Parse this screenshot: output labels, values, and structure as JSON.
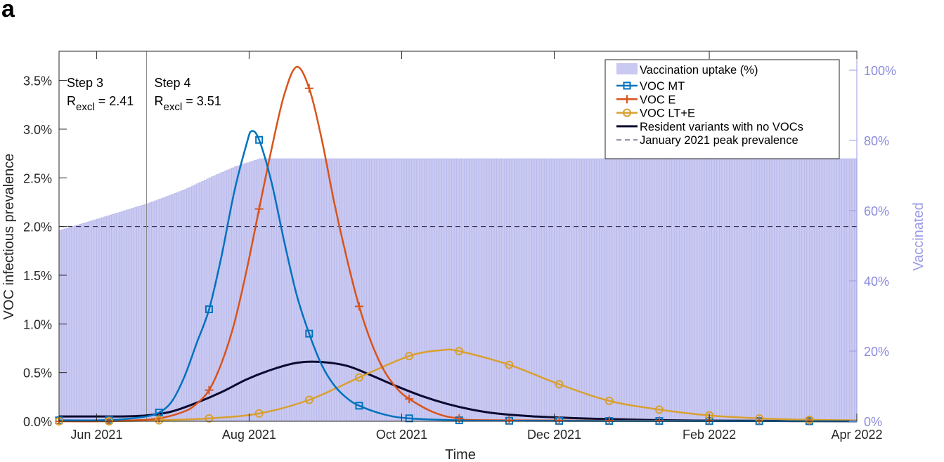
{
  "panel_label": "a",
  "chart_data": {
    "type": "line",
    "xlabel": "Time",
    "ylabel": "VOC infectious prevalence",
    "ylabel_right": "Vaccinated",
    "x_unit": "days since 1 Jun 2021",
    "xlim": [
      -15,
      304
    ],
    "ylim": [
      0,
      3.8
    ],
    "ylim_right": [
      0,
      105.4
    ],
    "grid": false,
    "legend_placement": "top-right",
    "x_ticks": [
      {
        "day": 0,
        "label": "Jun 2021"
      },
      {
        "day": 61,
        "label": "Aug 2021"
      },
      {
        "day": 122,
        "label": "Oct 2021"
      },
      {
        "day": 183,
        "label": "Dec 2021"
      },
      {
        "day": 245,
        "label": "Feb 2022"
      },
      {
        "day": 304,
        "label": "Apr 2022"
      }
    ],
    "y_ticks": [
      {
        "v": 0,
        "label": "0.0%"
      },
      {
        "v": 0.5,
        "label": "0.5%"
      },
      {
        "v": 1.0,
        "label": "1.0%"
      },
      {
        "v": 1.5,
        "label": "1.5%"
      },
      {
        "v": 2.0,
        "label": "2.0%"
      },
      {
        "v": 2.5,
        "label": "2.5%"
      },
      {
        "v": 3.0,
        "label": "3.0%"
      },
      {
        "v": 3.5,
        "label": "3.5%"
      }
    ],
    "y_ticks_right": [
      {
        "v": 0,
        "label": "0%"
      },
      {
        "v": 20,
        "label": "20%"
      },
      {
        "v": 40,
        "label": "40%"
      },
      {
        "v": 60,
        "label": "60%"
      },
      {
        "v": 80,
        "label": "80%"
      },
      {
        "v": 100,
        "label": "100%"
      }
    ],
    "vaccination": {
      "name": "Vaccination uptake (%)",
      "color": "#c9c9f2",
      "points": [
        [
          -15,
          54.4
        ],
        [
          0,
          57.6
        ],
        [
          20,
          62
        ],
        [
          35,
          66
        ],
        [
          45,
          69.4
        ],
        [
          55,
          72.5
        ],
        [
          65,
          74.8
        ],
        [
          304,
          74.8
        ]
      ]
    },
    "marker_days": [
      -15,
      5,
      25,
      45,
      65,
      85,
      105,
      125,
      145,
      165,
      185,
      205,
      225,
      245,
      265,
      285
    ],
    "series": [
      {
        "name": "VOC MT",
        "color": "#0072BD",
        "marker": "square",
        "points": [
          [
            -15,
            0.01
          ],
          [
            0,
            0.01
          ],
          [
            10,
            0.02
          ],
          [
            20,
            0.05
          ],
          [
            25,
            0.09
          ],
          [
            30,
            0.2
          ],
          [
            35,
            0.45
          ],
          [
            40,
            0.8
          ],
          [
            45,
            1.15
          ],
          [
            50,
            1.7
          ],
          [
            55,
            2.35
          ],
          [
            60,
            2.85
          ],
          [
            62,
            2.98
          ],
          [
            65,
            2.89
          ],
          [
            70,
            2.45
          ],
          [
            75,
            1.85
          ],
          [
            80,
            1.3
          ],
          [
            85,
            0.9
          ],
          [
            90,
            0.58
          ],
          [
            95,
            0.37
          ],
          [
            100,
            0.24
          ],
          [
            105,
            0.16
          ],
          [
            115,
            0.07
          ],
          [
            125,
            0.03
          ],
          [
            145,
            0.01
          ],
          [
            165,
            0.005
          ],
          [
            304,
            0
          ]
        ]
      },
      {
        "name": "VOC E",
        "color": "#D95319",
        "marker": "plus",
        "points": [
          [
            -15,
            0
          ],
          [
            0,
            0
          ],
          [
            15,
            0.01
          ],
          [
            25,
            0.03
          ],
          [
            35,
            0.1
          ],
          [
            40,
            0.18
          ],
          [
            45,
            0.32
          ],
          [
            50,
            0.6
          ],
          [
            55,
            1.0
          ],
          [
            60,
            1.55
          ],
          [
            65,
            2.18
          ],
          [
            70,
            2.8
          ],
          [
            75,
            3.35
          ],
          [
            80,
            3.64
          ],
          [
            85,
            3.42
          ],
          [
            90,
            2.9
          ],
          [
            95,
            2.25
          ],
          [
            100,
            1.68
          ],
          [
            105,
            1.18
          ],
          [
            110,
            0.8
          ],
          [
            115,
            0.52
          ],
          [
            120,
            0.34
          ],
          [
            125,
            0.23
          ],
          [
            135,
            0.09
          ],
          [
            145,
            0.03
          ],
          [
            165,
            0.01
          ],
          [
            304,
            0
          ]
        ]
      },
      {
        "name": "VOC LT+E",
        "color": "#D9A030",
        "marker": "circle",
        "points": [
          [
            -15,
            0
          ],
          [
            5,
            0
          ],
          [
            25,
            0.01
          ],
          [
            45,
            0.03
          ],
          [
            65,
            0.08
          ],
          [
            85,
            0.22
          ],
          [
            105,
            0.45
          ],
          [
            125,
            0.67
          ],
          [
            138,
            0.73
          ],
          [
            145,
            0.72
          ],
          [
            165,
            0.58
          ],
          [
            185,
            0.38
          ],
          [
            205,
            0.21
          ],
          [
            225,
            0.12
          ],
          [
            245,
            0.06
          ],
          [
            265,
            0.03
          ],
          [
            285,
            0.015
          ],
          [
            304,
            0.01
          ]
        ]
      },
      {
        "name": "Resident variants with no VOCs",
        "color": "#0a0a30",
        "marker": "none",
        "points": [
          [
            -15,
            0.05
          ],
          [
            0,
            0.05
          ],
          [
            10,
            0.05
          ],
          [
            20,
            0.06
          ],
          [
            30,
            0.1
          ],
          [
            40,
            0.19
          ],
          [
            50,
            0.3
          ],
          [
            60,
            0.43
          ],
          [
            70,
            0.53
          ],
          [
            80,
            0.6
          ],
          [
            89,
            0.61
          ],
          [
            100,
            0.57
          ],
          [
            110,
            0.47
          ],
          [
            120,
            0.36
          ],
          [
            130,
            0.26
          ],
          [
            140,
            0.18
          ],
          [
            150,
            0.12
          ],
          [
            160,
            0.08
          ],
          [
            175,
            0.05
          ],
          [
            200,
            0.025
          ],
          [
            230,
            0.01
          ],
          [
            260,
            0.005
          ],
          [
            304,
            0
          ]
        ]
      }
    ],
    "reference_line": {
      "name": "January 2021 peak prevalence",
      "value": 2.0,
      "style": "dashed"
    },
    "annotations": [
      {
        "day": -15,
        "step": "Step 3",
        "r_main": "R",
        "r_sub": "excl",
        "r_value": "= 2.41"
      },
      {
        "day": 20,
        "step": "Step 4",
        "r_main": "R",
        "r_sub": "excl",
        "r_value": "= 3.51"
      }
    ],
    "step4_line_day": 20
  }
}
